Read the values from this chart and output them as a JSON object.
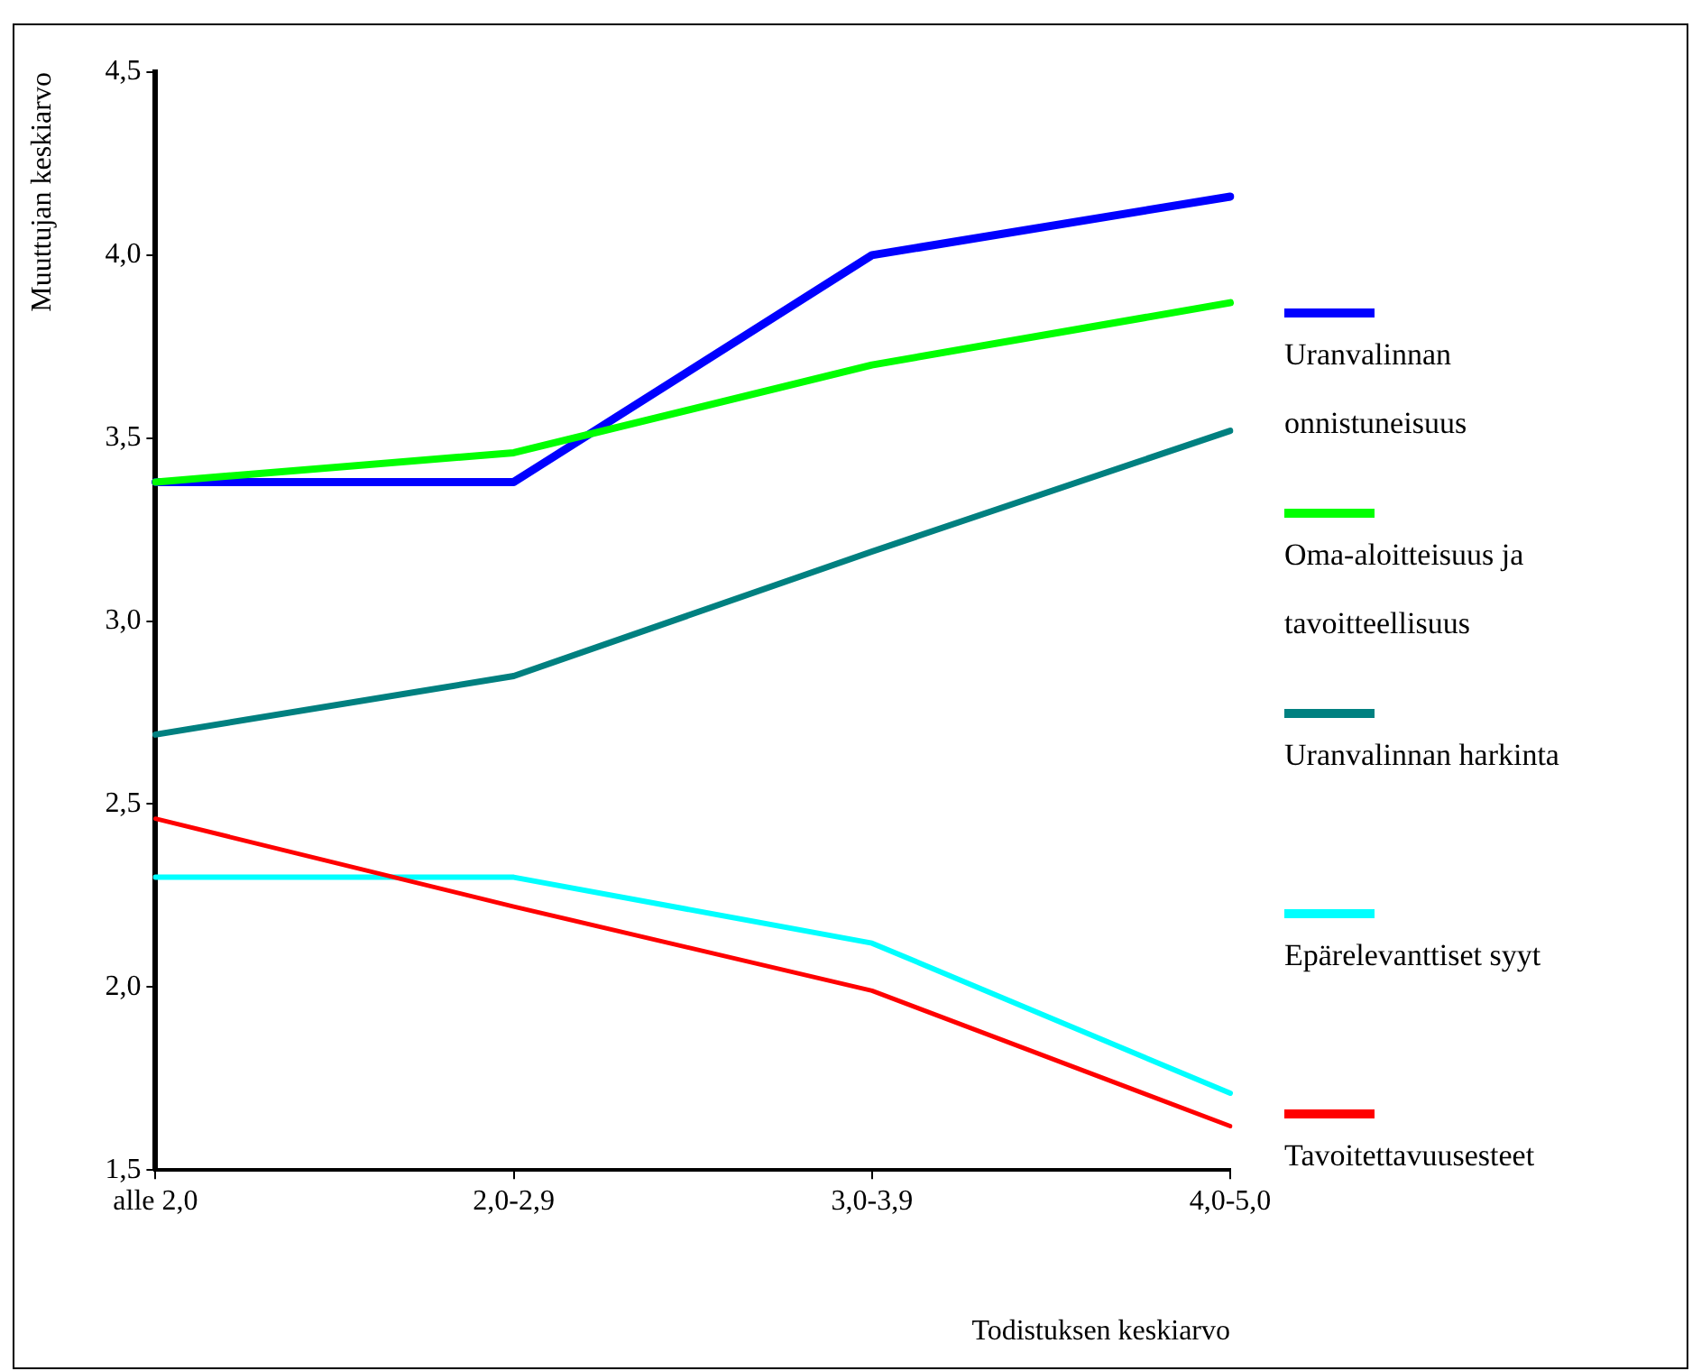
{
  "chart_data": {
    "type": "line",
    "xlabel": "Todistuksen keskiarvo",
    "ylabel": "Muuttujan keskiarvo",
    "categories": [
      "alle 2,0",
      "2,0-2,9",
      "3,0-3,9",
      "4,0-5,0"
    ],
    "ylim": [
      1.5,
      4.5
    ],
    "yticks": [
      {
        "value": 1.5,
        "label": "1,5"
      },
      {
        "value": 2.0,
        "label": "2,0"
      },
      {
        "value": 2.5,
        "label": "2,5"
      },
      {
        "value": 3.0,
        "label": "3,0"
      },
      {
        "value": 3.5,
        "label": "3,5"
      },
      {
        "value": 4.0,
        "label": "4,0"
      },
      {
        "value": 4.5,
        "label": "4,5"
      }
    ],
    "legend": "right",
    "marker": "none",
    "line_style": "solid",
    "series": [
      {
        "name": "Uranvalinnan onnistuneisuus",
        "color": "#0000ff",
        "values": [
          3.38,
          3.38,
          4.0,
          4.16
        ]
      },
      {
        "name": "Oma-aloitteisuus ja tavoitteellisuus",
        "color": "#00ff00",
        "values": [
          3.38,
          3.46,
          3.7,
          3.87
        ]
      },
      {
        "name": "Uranvalinnan harkinta",
        "color": "#008080",
        "values": [
          2.69,
          2.85,
          3.19,
          3.52
        ]
      },
      {
        "name": "Epärelevanttiset syyt",
        "color": "#00ffff",
        "values": [
          2.3,
          2.3,
          2.12,
          1.71
        ]
      },
      {
        "name": "Tavoitettavuusesteet",
        "color": "#ff0000",
        "values": [
          2.46,
          2.22,
          1.99,
          1.62
        ]
      }
    ]
  }
}
